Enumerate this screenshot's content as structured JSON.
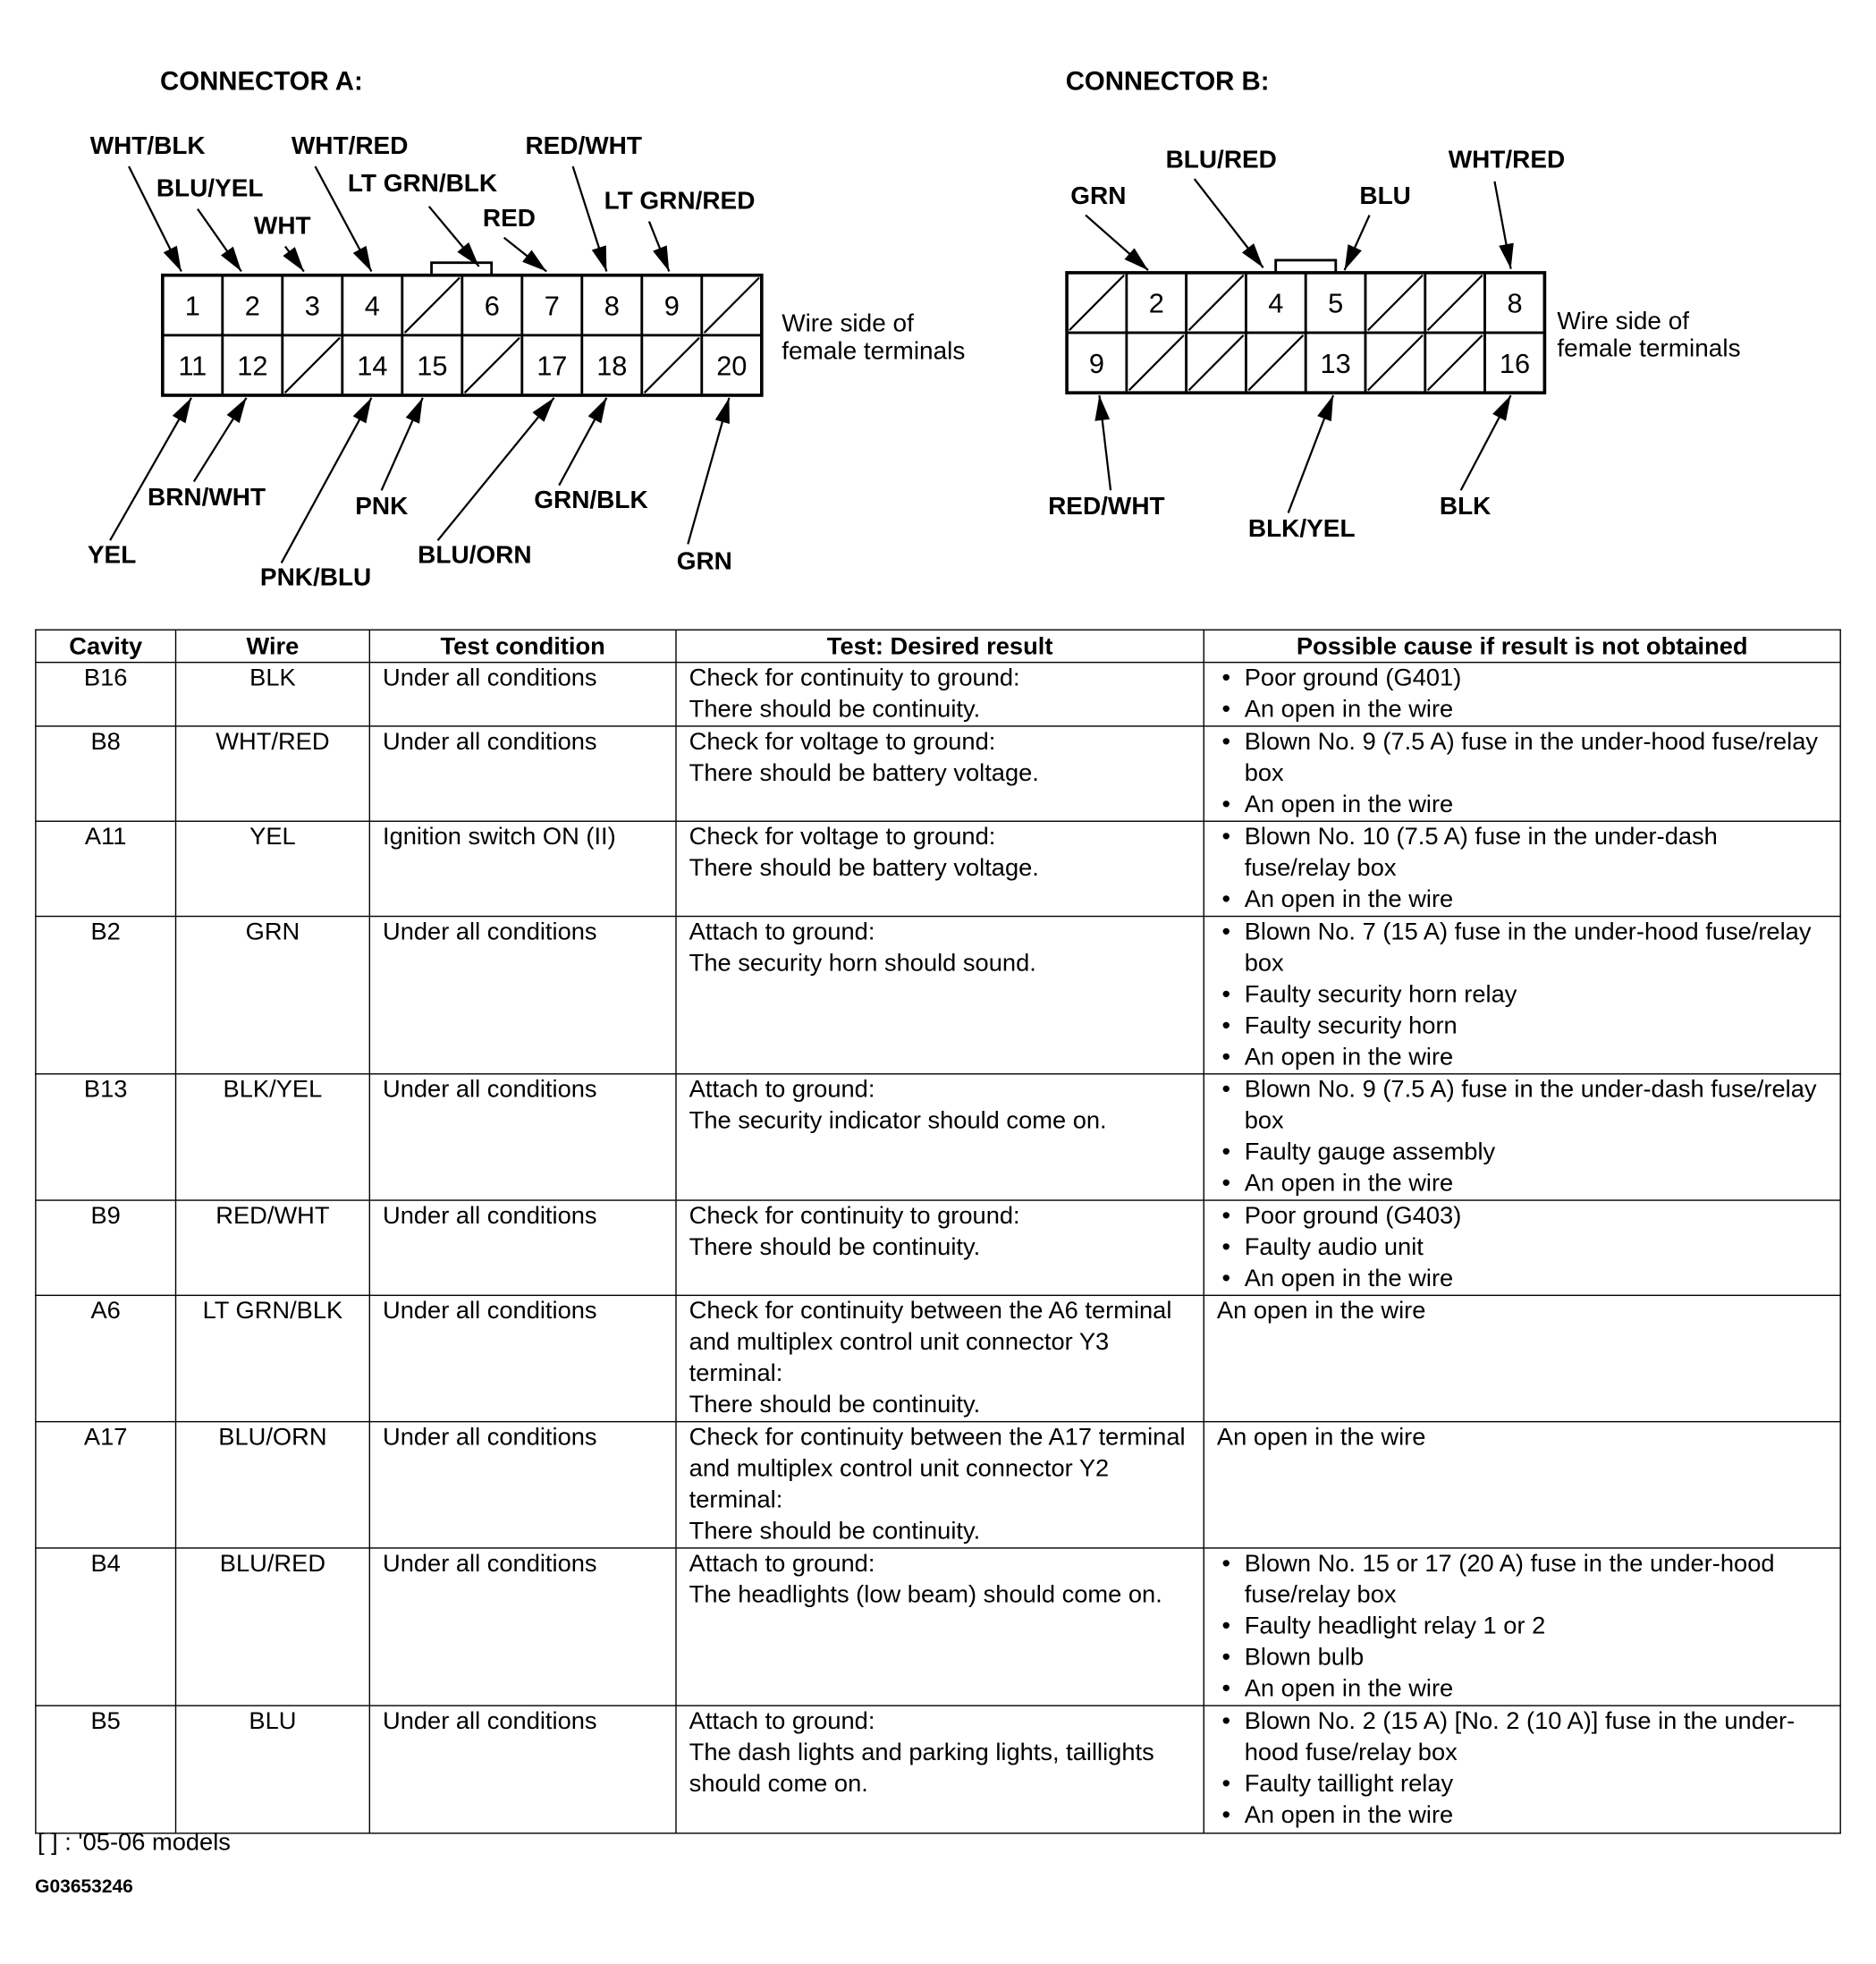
{
  "connector_a": {
    "title": "CONNECTOR A:",
    "note_line1": "Wire side of",
    "note_line2": "female terminals",
    "top_row": [
      "1",
      "2",
      "3",
      "4",
      null,
      "6",
      "7",
      "8",
      "9",
      null
    ],
    "bottom_row": [
      "11",
      "12",
      null,
      "14",
      "15",
      null,
      "17",
      "18",
      null,
      "20"
    ],
    "callouts": [
      {
        "wire": "WHT/BLK",
        "pin": "1"
      },
      {
        "wire": "BLU/YEL",
        "pin": "2"
      },
      {
        "wire": "WHT",
        "pin": "3"
      },
      {
        "wire": "WHT/RED",
        "pin": "4"
      },
      {
        "wire": "LT GRN/BLK",
        "pin": "6"
      },
      {
        "wire": "RED",
        "pin": "7"
      },
      {
        "wire": "RED/WHT",
        "pin": "8"
      },
      {
        "wire": "LT GRN/RED",
        "pin": "9"
      },
      {
        "wire": "YEL",
        "pin": "11"
      },
      {
        "wire": "BRN/WHT",
        "pin": "12"
      },
      {
        "wire": "PNK/BLU",
        "pin": "14"
      },
      {
        "wire": "PNK",
        "pin": "15"
      },
      {
        "wire": "BLU/ORN",
        "pin": "17"
      },
      {
        "wire": "GRN/BLK",
        "pin": "18"
      },
      {
        "wire": "GRN",
        "pin": "20"
      }
    ]
  },
  "connector_b": {
    "title": "CONNECTOR B:",
    "note_line1": "Wire side of",
    "note_line2": "female terminals",
    "top_row": [
      null,
      "2",
      null,
      "4",
      "5",
      null,
      null,
      "8"
    ],
    "bottom_row": [
      "9",
      null,
      null,
      null,
      "13",
      null,
      null,
      "16"
    ],
    "callouts": [
      {
        "wire": "GRN",
        "pin": "2"
      },
      {
        "wire": "BLU/RED",
        "pin": "4"
      },
      {
        "wire": "BLU",
        "pin": "5"
      },
      {
        "wire": "WHT/RED",
        "pin": "8"
      },
      {
        "wire": "RED/WHT",
        "pin": "9"
      },
      {
        "wire": "BLK/YEL",
        "pin": "13"
      },
      {
        "wire": "BLK",
        "pin": "16"
      }
    ]
  },
  "table": {
    "headers": [
      "Cavity",
      "Wire",
      "Test condition",
      "Test: Desired result",
      "Possible cause if result is not obtained"
    ],
    "rows": [
      {
        "cavity": "B16",
        "wire": "BLK",
        "condition": "Under all conditions",
        "result": [
          "Check for continuity to ground:",
          "There should be continuity."
        ],
        "causes": [
          "Poor ground (G401)",
          "An open in the wire"
        ],
        "bulleted": true
      },
      {
        "cavity": "B8",
        "wire": "WHT/RED",
        "condition": "Under all conditions",
        "result": [
          "Check for voltage to ground:",
          "There should be battery voltage."
        ],
        "causes": [
          "Blown No. 9 (7.5 A) fuse in the under-hood fuse/relay box",
          "An open in the wire"
        ],
        "bulleted": true
      },
      {
        "cavity": "A11",
        "wire": "YEL",
        "condition": "Ignition switch ON (II)",
        "result": [
          "Check for voltage to ground:",
          "There should be battery voltage."
        ],
        "causes": [
          "Blown No. 10 (7.5 A) fuse in the under-dash fuse/relay box",
          "An open in the wire"
        ],
        "bulleted": true
      },
      {
        "cavity": "B2",
        "wire": "GRN",
        "condition": "Under all conditions",
        "result": [
          "Attach to ground:",
          "The security horn should sound."
        ],
        "causes": [
          "Blown No. 7 (15 A) fuse in the under-hood fuse/relay box",
          "Faulty security horn relay",
          "Faulty security horn",
          "An open in the wire"
        ],
        "bulleted": true
      },
      {
        "cavity": "B13",
        "wire": "BLK/YEL",
        "condition": "Under all conditions",
        "result": [
          "Attach to ground:",
          "The security indicator should come on."
        ],
        "causes": [
          "Blown No. 9 (7.5 A) fuse in the under-dash fuse/relay box",
          "Faulty gauge assembly",
          "An open in the wire"
        ],
        "bulleted": true
      },
      {
        "cavity": "B9",
        "wire": "RED/WHT",
        "condition": "Under all conditions",
        "result": [
          "Check for continuity to ground:",
          "There should be continuity."
        ],
        "causes": [
          "Poor ground (G403)",
          "Faulty audio unit",
          "An open in the wire"
        ],
        "bulleted": true
      },
      {
        "cavity": "A6",
        "wire": "LT GRN/BLK",
        "condition": "Under all conditions",
        "result": [
          "Check for continuity between the A6 terminal and multiplex control unit connector Y3 terminal:",
          "There should be continuity."
        ],
        "causes": [
          "An open in the wire"
        ],
        "bulleted": false
      },
      {
        "cavity": "A17",
        "wire": "BLU/ORN",
        "condition": "Under all conditions",
        "result": [
          "Check for continuity between the A17 terminal and multiplex control unit connector Y2 terminal:",
          "There should be continuity."
        ],
        "causes": [
          "An open in the wire"
        ],
        "bulleted": false
      },
      {
        "cavity": "B4",
        "wire": "BLU/RED",
        "condition": "Under all conditions",
        "result": [
          "Attach to ground:",
          "The headlights (low beam) should come on."
        ],
        "causes": [
          "Blown No. 15 or 17 (20 A) fuse in the under-hood fuse/relay box",
          "Faulty headlight relay 1 or 2",
          "Blown bulb",
          "An open in the wire"
        ],
        "bulleted": true
      },
      {
        "cavity": "B5",
        "wire": "BLU",
        "condition": "Under all conditions",
        "result": [
          "Attach to ground:",
          "The dash lights and parking lights, taillights should come on."
        ],
        "causes": [
          "Blown No. 2 (15 A) [No. 2 (10 A)] fuse in the under-hood fuse/relay box",
          "Faulty taillight relay",
          "An open in the wire"
        ],
        "bulleted": true
      }
    ]
  },
  "footnote": "[ ] : '05-06 models",
  "figure_id": "G03653246"
}
